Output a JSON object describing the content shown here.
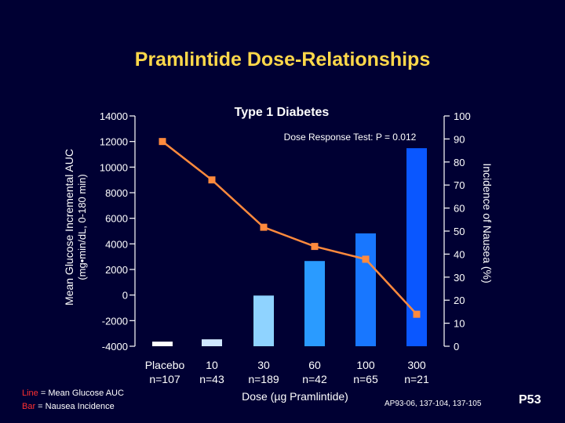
{
  "slide": {
    "title": "Pramlintide Dose-Relationships",
    "legend_line_key": "Line",
    "legend_line_text": " = Mean Glucose AUC",
    "legend_bar_key": "Bar",
    "legend_bar_text": " = Nausea Incidence",
    "reference": "AP93-06, 137-104, 137-105",
    "page_number": "P53"
  },
  "colors": {
    "background": "#000033",
    "title": "#ffd84a",
    "line": "#ff8a3d",
    "marker": "#ff8a3d",
    "bars": [
      "#ffffff",
      "#d0e8ff",
      "#8fd3ff",
      "#2a9bff",
      "#1877ff",
      "#0a57ff"
    ]
  },
  "chart_data": {
    "type": "bar+line",
    "title": "Type 1 Diabetes",
    "annotation": "Dose Response Test: P = 0.012",
    "xlabel": "Dose (µg Pramlintide)",
    "ylabel_left_line1": "Mean Glucose Incremental AUC",
    "ylabel_left_line2": "(mg•min/dL, 0-180 min)",
    "ylabel_right": "Incidence of Nausea (%)",
    "categories": [
      {
        "dose": "Placebo",
        "n": "n=107"
      },
      {
        "dose": "10",
        "n": "n=43"
      },
      {
        "dose": "30",
        "n": "n=189"
      },
      {
        "dose": "60",
        "n": "n=42"
      },
      {
        "dose": "100",
        "n": "n=65"
      },
      {
        "dose": "300",
        "n": "n=21"
      }
    ],
    "y_left": {
      "min": -4000,
      "max": 14000,
      "ticks": [
        "14000",
        "12000",
        "10000",
        "8000",
        "6000",
        "4000",
        "2000",
        "0",
        "-2000",
        "-4000"
      ]
    },
    "y_right": {
      "min": 0,
      "max": 100,
      "ticks": [
        "100",
        "90",
        "80",
        "70",
        "60",
        "50",
        "40",
        "30",
        "20",
        "10",
        "0"
      ]
    },
    "series": [
      {
        "axis": "right",
        "kind": "bar",
        "values": [
          2,
          3,
          22,
          37,
          49,
          86
        ]
      },
      {
        "axis": "left",
        "kind": "line",
        "values": [
          12000,
          9000,
          5300,
          3800,
          2800,
          -1500
        ]
      }
    ]
  }
}
